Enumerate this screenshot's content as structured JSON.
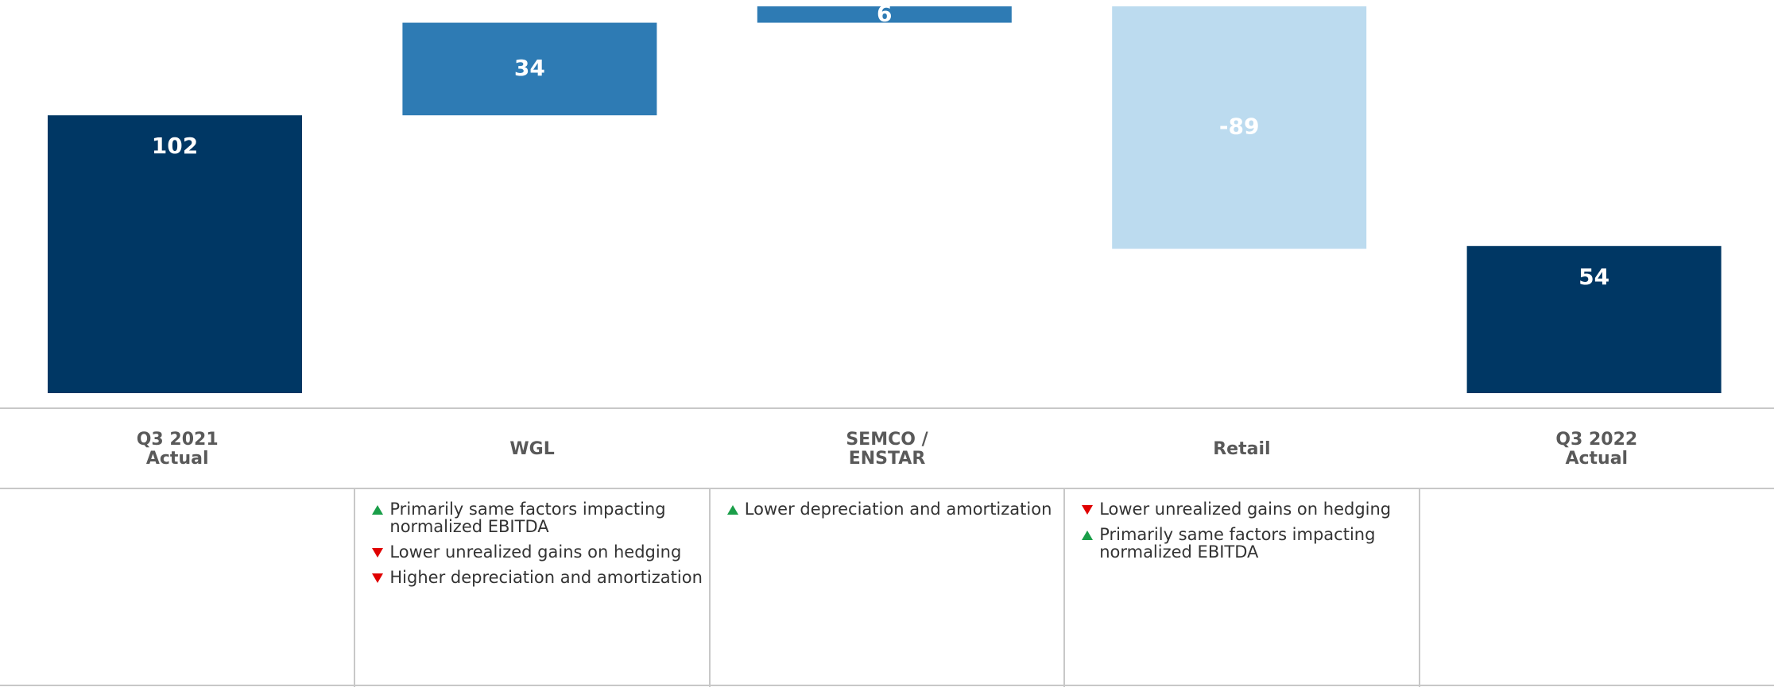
{
  "chart_data": {
    "type": "waterfall",
    "categories": [
      "Q3 2021\nActual",
      "WGL",
      "SEMCO /\nENSTAR",
      "Retail",
      "Q3 2022\nActual"
    ],
    "values": [
      102,
      34,
      6,
      -89,
      54
    ],
    "measures": [
      "total",
      "relative",
      "relative",
      "relative",
      "total"
    ],
    "colors": {
      "total": "#003764",
      "increase": "#2e7bb4",
      "decrease": "#bcdbef"
    },
    "notes": [
      [],
      [
        {
          "text": "Primarily same factors impacting\nnormalized EBITDA",
          "direction": "up"
        },
        {
          "text": "Lower unrealized gains on hedging",
          "direction": "down"
        },
        {
          "text": "Higher depreciation and amortization",
          "direction": "down"
        }
      ],
      [
        {
          "text": "Lower depreciation and amortization",
          "direction": "up"
        }
      ],
      [
        {
          "text": "Lower unrealized gains on hedging",
          "direction": "down"
        },
        {
          "text": "Primarily same factors impacting\nnormalized EBITDA",
          "direction": "up"
        }
      ],
      []
    ]
  }
}
